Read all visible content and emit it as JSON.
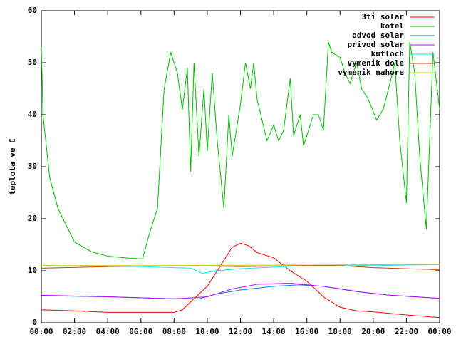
{
  "chart_data": {
    "type": "line",
    "y_label": "teplota ve C",
    "xlim": [
      0,
      24
    ],
    "xticks": [
      {
        "value": 0,
        "label": "00:00"
      },
      {
        "value": 2,
        "label": "02:00"
      },
      {
        "value": 4,
        "label": "04:00"
      },
      {
        "value": 6,
        "label": "06:00"
      },
      {
        "value": 8,
        "label": "08:00"
      },
      {
        "value": 10,
        "label": "10:00"
      },
      {
        "value": 12,
        "label": "12:00"
      },
      {
        "value": 14,
        "label": "14:00"
      },
      {
        "value": 16,
        "label": "16:00"
      },
      {
        "value": 18,
        "label": "18:00"
      },
      {
        "value": 20,
        "label": "20:00"
      },
      {
        "value": 22,
        "label": "22:00"
      },
      {
        "value": 24,
        "label": "00:00"
      }
    ],
    "ylim": [
      0,
      60
    ],
    "yticks": [
      0,
      10,
      20,
      30,
      40,
      50,
      60
    ],
    "grid": false,
    "legend": "top-right",
    "series": [
      {
        "name": "3ti solar",
        "color": "#ff0000",
        "x": [
          0,
          2,
          4,
          6,
          8,
          8.5,
          9,
          10,
          11,
          11.5,
          12,
          12.5,
          13,
          14,
          15,
          16,
          17,
          18,
          19,
          20,
          22,
          24
        ],
        "values": [
          2.5,
          2.3,
          2.0,
          2.0,
          2.0,
          2.5,
          4,
          7,
          12,
          14.5,
          15.3,
          14.8,
          13.5,
          12.5,
          10,
          8,
          5,
          3,
          2.3,
          2.1,
          1.5,
          1.0
        ]
      },
      {
        "name": "kotel",
        "color": "#00c000",
        "x": [
          0,
          0.1,
          0.5,
          1,
          2,
          3,
          4,
          5,
          6,
          6.1,
          6.5,
          7,
          7.4,
          7.8,
          8.2,
          8.5,
          8.8,
          9.0,
          9.2,
          9.5,
          9.8,
          10,
          10.3,
          10.6,
          11,
          11.3,
          11.5,
          12,
          12.3,
          12.6,
          12.8,
          13,
          13.3,
          13.6,
          14,
          14.3,
          14.6,
          15,
          15.2,
          15.6,
          15.8,
          16,
          16.4,
          16.7,
          17,
          17.3,
          17.5,
          18,
          18.3,
          18.6,
          19,
          19.3,
          19.7,
          20.2,
          20.6,
          21,
          21.3,
          21.6,
          22,
          22.2,
          22.5,
          22.8,
          23.2,
          23.6,
          24
        ],
        "values": [
          53,
          40,
          28,
          22,
          15.5,
          13.7,
          12.8,
          12.5,
          12.3,
          12.3,
          17,
          22,
          45,
          52,
          48,
          41,
          49,
          29,
          50,
          32,
          45,
          33,
          48,
          35,
          22,
          40,
          32,
          42,
          50,
          45,
          50,
          43,
          39,
          35,
          38,
          35,
          37,
          47,
          36,
          40,
          34,
          36,
          40,
          40,
          37,
          54,
          52,
          51,
          48,
          46,
          50,
          45,
          43,
          39,
          41,
          46,
          50,
          35,
          23,
          54,
          48,
          32,
          18,
          52,
          41
        ]
      },
      {
        "name": "odvod solar",
        "color": "#0080ff",
        "x": [
          0,
          4,
          8,
          9.5,
          10.5,
          12,
          14,
          15.5,
          17,
          19,
          21,
          24
        ],
        "values": [
          5.2,
          5.0,
          4.6,
          4.6,
          5.5,
          6.3,
          7.0,
          7.3,
          7.0,
          6.0,
          5.3,
          4.7
        ]
      },
      {
        "name": "privod solar",
        "color": "#c000ff",
        "x": [
          0,
          4,
          8,
          10,
          11.5,
          13,
          15,
          17,
          19.5,
          21,
          24
        ],
        "values": [
          5.3,
          5.0,
          4.6,
          5.0,
          6.5,
          7.4,
          7.6,
          7.0,
          5.8,
          5.3,
          4.7
        ]
      },
      {
        "name": "kutloch",
        "color": "#00eeee",
        "x": [
          0,
          6,
          9,
          9.7,
          10.5,
          12,
          14,
          16,
          20,
          24
        ],
        "values": [
          11,
          10.8,
          10.5,
          9.5,
          10,
          10.4,
          10.7,
          11,
          11,
          11.2
        ]
      },
      {
        "name": "vymenik dole",
        "color": "#c04000",
        "x": [
          0,
          4,
          8,
          12,
          16,
          18,
          20,
          22,
          24
        ],
        "values": [
          10.5,
          10.8,
          11,
          10.8,
          11,
          11,
          10.6,
          10.4,
          10.2
        ]
      },
      {
        "name": "vymenik nahore",
        "color": "#c8c800",
        "x": [
          0,
          8,
          16,
          24
        ],
        "values": [
          11,
          11,
          11.1,
          11.2
        ]
      }
    ]
  }
}
